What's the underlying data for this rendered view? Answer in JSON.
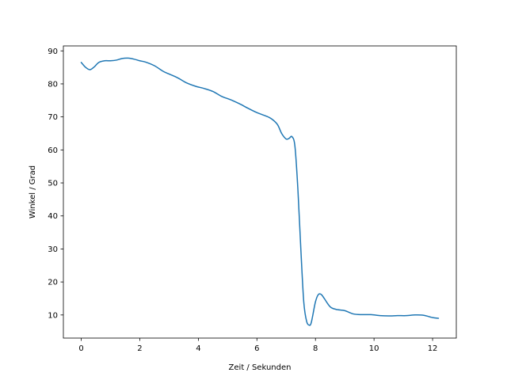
{
  "chart_data": {
    "type": "line",
    "title": "",
    "xlabel": "Zeit / Sekunden",
    "ylabel": "Winkel / Grad",
    "xlim": [
      -0.61,
      12.81
    ],
    "ylim": [
      3.0,
      91.5
    ],
    "xticks": [
      0,
      2,
      4,
      6,
      8,
      10,
      12
    ],
    "yticks": [
      10,
      20,
      30,
      40,
      50,
      60,
      70,
      80,
      90
    ],
    "grid": false,
    "legend": "none",
    "line_color": "#1f77b4",
    "series": [
      {
        "x": [
          0.0,
          0.15,
          0.3,
          0.45,
          0.6,
          0.8,
          1.0,
          1.2,
          1.4,
          1.6,
          1.8,
          2.0,
          2.2,
          2.5,
          2.8,
          3.0,
          3.3,
          3.6,
          3.9,
          4.2,
          4.5,
          4.8,
          5.1,
          5.4,
          5.7,
          6.0,
          6.3,
          6.5,
          6.7,
          6.85,
          7.0,
          7.1,
          7.2,
          7.3,
          7.4,
          7.5,
          7.6,
          7.7,
          7.8,
          7.85,
          7.9,
          8.0,
          8.1,
          8.2,
          8.3,
          8.5,
          8.7,
          9.0,
          9.3,
          9.6,
          9.9,
          10.2,
          10.5,
          10.8,
          11.1,
          11.4,
          11.7,
          12.0,
          12.2
        ],
        "y": [
          86.5,
          85.0,
          84.3,
          85.2,
          86.5,
          87.0,
          87.0,
          87.2,
          87.7,
          87.8,
          87.5,
          87.0,
          86.6,
          85.5,
          83.8,
          83.0,
          81.8,
          80.3,
          79.3,
          78.6,
          77.7,
          76.2,
          75.2,
          74.0,
          72.6,
          71.3,
          70.3,
          69.4,
          67.7,
          64.9,
          63.3,
          63.5,
          64.0,
          61.0,
          48.0,
          30.0,
          14.0,
          8.0,
          6.9,
          7.5,
          9.5,
          14.0,
          16.2,
          16.2,
          15.0,
          12.5,
          11.7,
          11.3,
          10.3,
          10.1,
          10.1,
          9.8,
          9.7,
          9.8,
          9.8,
          10.0,
          9.9,
          9.2,
          9.0
        ]
      }
    ]
  }
}
